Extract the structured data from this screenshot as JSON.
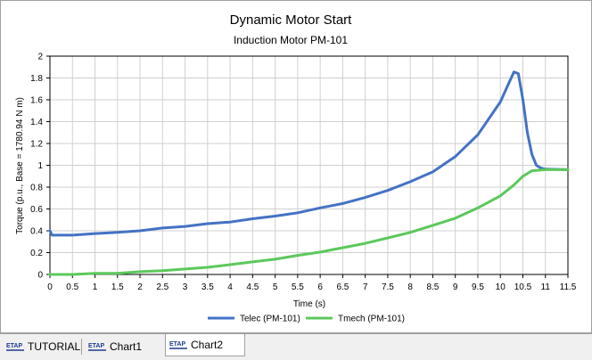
{
  "tabs": [
    {
      "label": "TUTORIAL",
      "icon": "etap-chart-icon",
      "active": false
    },
    {
      "label": "Chart1",
      "icon": "etap-chart-icon",
      "active": false
    },
    {
      "label": "Chart2",
      "icon": "etap-chart-icon",
      "active": true
    }
  ],
  "colors": {
    "telec": "#4472c4",
    "tmech": "#5cc85c",
    "grid": "#d0d0d0",
    "plot_bg": "#ffffff"
  },
  "chart_data": {
    "type": "line",
    "title": "Dynamic Motor Start",
    "subtitle": "Induction Motor PM-101",
    "xlabel": "Time (s)",
    "ylabel": "Torque (p.u., Base = 1780.94 N m)",
    "xlim": [
      0,
      11.5
    ],
    "ylim": [
      0,
      2
    ],
    "x_ticks": [
      "0",
      "0.5",
      "1",
      "1.5",
      "2",
      "2.5",
      "3",
      "3.5",
      "4",
      "4.5",
      "5",
      "5.5",
      "6",
      "6.5",
      "7",
      "7.5",
      "8",
      "8.5",
      "9",
      "9.5",
      "10",
      "10.5",
      "11",
      "11.5"
    ],
    "y_ticks": [
      "0",
      "0.2",
      "0.4",
      "0.6",
      "0.8",
      "1",
      "1.2",
      "1.4",
      "1.6",
      "1.8",
      "2"
    ],
    "grid": true,
    "legend_position": "bottom",
    "series": [
      {
        "name": "Telec (PM-101)",
        "points": [
          [
            0,
            0.4
          ],
          [
            0.05,
            0.36
          ],
          [
            0.5,
            0.36
          ],
          [
            1,
            0.375
          ],
          [
            1.5,
            0.385
          ],
          [
            2,
            0.4
          ],
          [
            2.5,
            0.425
          ],
          [
            3,
            0.44
          ],
          [
            3.5,
            0.465
          ],
          [
            4,
            0.48
          ],
          [
            4.5,
            0.51
          ],
          [
            5,
            0.535
          ],
          [
            5.5,
            0.565
          ],
          [
            6,
            0.61
          ],
          [
            6.5,
            0.65
          ],
          [
            7,
            0.705
          ],
          [
            7.5,
            0.77
          ],
          [
            8,
            0.85
          ],
          [
            8.5,
            0.94
          ],
          [
            9,
            1.08
          ],
          [
            9.5,
            1.28
          ],
          [
            10,
            1.58
          ],
          [
            10.3,
            1.855
          ],
          [
            10.4,
            1.84
          ],
          [
            10.5,
            1.6
          ],
          [
            10.6,
            1.3
          ],
          [
            10.7,
            1.1
          ],
          [
            10.8,
            1.0
          ],
          [
            10.9,
            0.975
          ],
          [
            11,
            0.965
          ],
          [
            11.5,
            0.96
          ]
        ]
      },
      {
        "name": "Tmech (PM-101)",
        "points": [
          [
            0,
            0.0
          ],
          [
            0.5,
            0.0
          ],
          [
            1,
            0.01
          ],
          [
            1.5,
            0.01
          ],
          [
            2,
            0.025
          ],
          [
            2.5,
            0.035
          ],
          [
            3,
            0.05
          ],
          [
            3.5,
            0.065
          ],
          [
            4,
            0.09
          ],
          [
            4.5,
            0.115
          ],
          [
            5,
            0.14
          ],
          [
            5.5,
            0.175
          ],
          [
            6,
            0.205
          ],
          [
            6.5,
            0.245
          ],
          [
            7,
            0.285
          ],
          [
            7.5,
            0.335
          ],
          [
            8,
            0.385
          ],
          [
            8.5,
            0.45
          ],
          [
            9,
            0.515
          ],
          [
            9.5,
            0.61
          ],
          [
            10,
            0.72
          ],
          [
            10.3,
            0.82
          ],
          [
            10.5,
            0.9
          ],
          [
            10.7,
            0.95
          ],
          [
            11,
            0.96
          ],
          [
            11.5,
            0.96
          ]
        ]
      }
    ]
  }
}
